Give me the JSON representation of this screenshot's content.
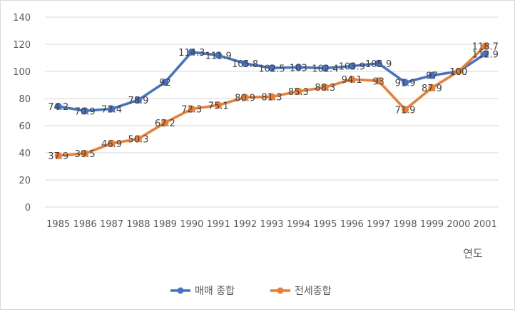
{
  "chart_data": {
    "type": "line",
    "title": "",
    "xlabel": "연도",
    "ylabel": "",
    "categories": [
      "1985",
      "1986",
      "1987",
      "1988",
      "1989",
      "1990",
      "1991",
      "1992",
      "1993",
      "1994",
      "1995",
      "1996",
      "1997",
      "1998",
      "1999",
      "2000",
      "2001"
    ],
    "ylim": [
      0,
      140
    ],
    "yticks": [
      "0",
      "20",
      "40",
      "60",
      "80",
      "100",
      "120",
      "140"
    ],
    "grid": true,
    "legend_position": "bottom",
    "series": [
      {
        "name": "매매 종합",
        "color": "#4472c4",
        "values": [
          74.2,
          70.9,
          72.4,
          78.9,
          92,
          114.3,
          111.9,
          105.8,
          102.5,
          103,
          102.4,
          103.9,
          105.9,
          91.9,
          97,
          100,
          112.9
        ],
        "labels": [
          "74.2",
          "70.9",
          "72.4",
          "78.9",
          "92",
          "114.3",
          "111.9",
          "105.8",
          "102.5",
          "103",
          "102.4",
          "103.9",
          "105.9",
          "91.9",
          "97",
          "100",
          "112.9"
        ]
      },
      {
        "name": "전세종합",
        "color": "#ed7d31",
        "values": [
          37.9,
          39.5,
          46.9,
          50.3,
          62.2,
          72.3,
          75.1,
          80.9,
          81.3,
          85.3,
          88.3,
          94.1,
          93,
          71.9,
          87.9,
          100,
          118.7
        ],
        "labels": [
          "37.9",
          "39.5",
          "46.9",
          "50.3",
          "62.2",
          "72.3",
          "75.1",
          "80.9",
          "81.3",
          "85.3",
          "88.3",
          "94.1",
          "93",
          "71.9",
          "87.9",
          "100",
          "118.7"
        ]
      }
    ]
  }
}
